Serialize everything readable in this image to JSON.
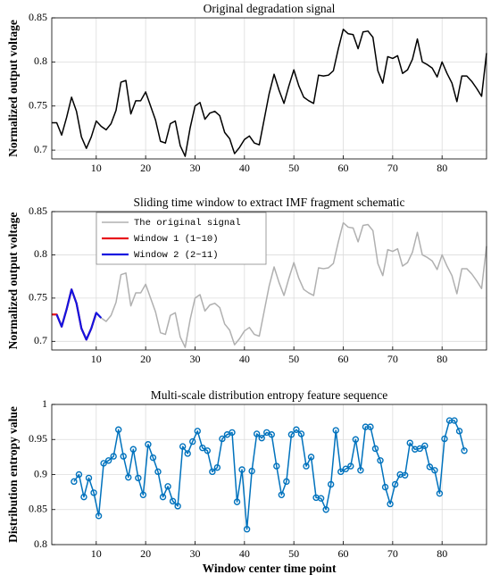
{
  "chart_data": [
    {
      "type": "line",
      "title": "Original degradation signal",
      "ylabel": "Normalized output voltage",
      "x": [
        1,
        2,
        3,
        4,
        5,
        6,
        7,
        8,
        9,
        10,
        11,
        12,
        13,
        14,
        15,
        16,
        17,
        18,
        19,
        20,
        21,
        22,
        23,
        24,
        25,
        26,
        27,
        28,
        29,
        30,
        31,
        32,
        33,
        34,
        35,
        36,
        37,
        38,
        39,
        40,
        41,
        42,
        43,
        44,
        45,
        46,
        47,
        48,
        49,
        50,
        51,
        52,
        53,
        54,
        55,
        56,
        57,
        58,
        59,
        60,
        61,
        62,
        63,
        64,
        65,
        66,
        67,
        68,
        69,
        70,
        71,
        72,
        73,
        74,
        75,
        76,
        77,
        78,
        79,
        80,
        81,
        82,
        83,
        84,
        85,
        86,
        87,
        88,
        89
      ],
      "series": [
        {
          "name": "Original degradation signal",
          "color": "#000000",
          "values": [
            0.731,
            0.731,
            0.717,
            0.737,
            0.76,
            0.744,
            0.715,
            0.702,
            0.715,
            0.733,
            0.727,
            0.723,
            0.73,
            0.745,
            0.777,
            0.779,
            0.741,
            0.756,
            0.756,
            0.766,
            0.75,
            0.734,
            0.71,
            0.708,
            0.73,
            0.733,
            0.705,
            0.693,
            0.725,
            0.75,
            0.754,
            0.735,
            0.742,
            0.744,
            0.739,
            0.72,
            0.713,
            0.696,
            0.703,
            0.712,
            0.716,
            0.708,
            0.706,
            0.735,
            0.764,
            0.786,
            0.768,
            0.753,
            0.773,
            0.791,
            0.773,
            0.76,
            0.756,
            0.753,
            0.785,
            0.784,
            0.785,
            0.79,
            0.815,
            0.837,
            0.832,
            0.831,
            0.815,
            0.834,
            0.835,
            0.828,
            0.79,
            0.776,
            0.806,
            0.804,
            0.807,
            0.787,
            0.791,
            0.803,
            0.826,
            0.8,
            0.797,
            0.793,
            0.783,
            0.8,
            0.787,
            0.776,
            0.755,
            0.784,
            0.784,
            0.778,
            0.77,
            0.761,
            0.81
          ]
        }
      ],
      "xlim": [
        1,
        89
      ],
      "ylim": [
        0.69,
        0.85
      ],
      "xticks": [
        10,
        20,
        30,
        40,
        50,
        60,
        70,
        80
      ],
      "yticks": [
        0.7,
        0.75,
        0.8,
        0.85
      ],
      "grid": true
    },
    {
      "type": "line",
      "title": "Sliding time window to extract IMF fragment schematic",
      "ylabel": "Normalized output voltage",
      "x": [
        1,
        2,
        3,
        4,
        5,
        6,
        7,
        8,
        9,
        10,
        11,
        12,
        13,
        14,
        15,
        16,
        17,
        18,
        19,
        20,
        21,
        22,
        23,
        24,
        25,
        26,
        27,
        28,
        29,
        30,
        31,
        32,
        33,
        34,
        35,
        36,
        37,
        38,
        39,
        40,
        41,
        42,
        43,
        44,
        45,
        46,
        47,
        48,
        49,
        50,
        51,
        52,
        53,
        54,
        55,
        56,
        57,
        58,
        59,
        60,
        61,
        62,
        63,
        64,
        65,
        66,
        67,
        68,
        69,
        70,
        71,
        72,
        73,
        74,
        75,
        76,
        77,
        78,
        79,
        80,
        81,
        82,
        83,
        84,
        85,
        86,
        87,
        88,
        89
      ],
      "series": [
        {
          "name": "The original signal",
          "color": "#b0b0b0",
          "values": [
            0.731,
            0.731,
            0.717,
            0.737,
            0.76,
            0.744,
            0.715,
            0.702,
            0.715,
            0.733,
            0.727,
            0.723,
            0.73,
            0.745,
            0.777,
            0.779,
            0.741,
            0.756,
            0.756,
            0.766,
            0.75,
            0.734,
            0.71,
            0.708,
            0.73,
            0.733,
            0.705,
            0.693,
            0.725,
            0.75,
            0.754,
            0.735,
            0.742,
            0.744,
            0.739,
            0.72,
            0.713,
            0.696,
            0.703,
            0.712,
            0.716,
            0.708,
            0.706,
            0.735,
            0.764,
            0.786,
            0.768,
            0.753,
            0.773,
            0.791,
            0.773,
            0.76,
            0.756,
            0.753,
            0.785,
            0.784,
            0.785,
            0.79,
            0.815,
            0.837,
            0.832,
            0.831,
            0.815,
            0.834,
            0.835,
            0.828,
            0.79,
            0.776,
            0.806,
            0.804,
            0.807,
            0.787,
            0.791,
            0.803,
            0.826,
            0.8,
            0.797,
            0.793,
            0.783,
            0.8,
            0.787,
            0.776,
            0.755,
            0.784,
            0.784,
            0.778,
            0.77,
            0.761,
            0.81
          ]
        },
        {
          "name": "Window 1 (1~10)",
          "color": "#e8141c",
          "values": [
            0.731,
            0.731,
            0.717,
            0.737,
            0.76,
            0.744,
            0.715,
            0.702,
            0.715,
            0.733,
            null,
            null,
            null,
            null,
            null,
            null,
            null,
            null,
            null,
            null,
            null,
            null,
            null,
            null,
            null,
            null,
            null,
            null,
            null,
            null,
            null,
            null,
            null,
            null,
            null,
            null,
            null,
            null,
            null,
            null,
            null,
            null,
            null,
            null,
            null,
            null,
            null,
            null,
            null,
            null,
            null,
            null,
            null,
            null,
            null,
            null,
            null,
            null,
            null,
            null,
            null,
            null,
            null,
            null,
            null,
            null,
            null,
            null,
            null,
            null,
            null,
            null,
            null,
            null,
            null,
            null,
            null,
            null,
            null,
            null,
            null,
            null,
            null,
            null,
            null,
            null,
            null,
            null,
            null
          ]
        },
        {
          "name": "Window 2 (2~11)",
          "color": "#1414e0",
          "values": [
            null,
            0.731,
            0.717,
            0.737,
            0.76,
            0.744,
            0.715,
            0.702,
            0.715,
            0.733,
            0.727,
            null,
            null,
            null,
            null,
            null,
            null,
            null,
            null,
            null,
            null,
            null,
            null,
            null,
            null,
            null,
            null,
            null,
            null,
            null,
            null,
            null,
            null,
            null,
            null,
            null,
            null,
            null,
            null,
            null,
            null,
            null,
            null,
            null,
            null,
            null,
            null,
            null,
            null,
            null,
            null,
            null,
            null,
            null,
            null,
            null,
            null,
            null,
            null,
            null,
            null,
            null,
            null,
            null,
            null,
            null,
            null,
            null,
            null,
            null,
            null,
            null,
            null,
            null,
            null,
            null,
            null,
            null,
            null,
            null,
            null,
            null,
            null,
            null,
            null,
            null,
            null,
            null,
            null
          ]
        }
      ],
      "xlim": [
        1,
        89
      ],
      "ylim": [
        0.69,
        0.85
      ],
      "xticks": [
        10,
        20,
        30,
        40,
        50,
        60,
        70,
        80
      ],
      "yticks": [
        0.7,
        0.75,
        0.8,
        0.85
      ],
      "grid": true,
      "legend": "upper left"
    },
    {
      "type": "line",
      "title": "Multi-scale distribution entropy feature sequence",
      "ylabel": "Distribution entropy value",
      "xlabel": "Window center time point",
      "x": [
        5.5,
        6.5,
        7.5,
        8.5,
        9.5,
        10.5,
        11.5,
        12.5,
        13.5,
        14.5,
        15.5,
        16.5,
        17.5,
        18.5,
        19.5,
        20.5,
        21.5,
        22.5,
        23.5,
        24.5,
        25.5,
        26.5,
        27.5,
        28.5,
        29.5,
        30.5,
        31.5,
        32.5,
        33.5,
        34.5,
        35.5,
        36.5,
        37.5,
        38.5,
        39.5,
        40.5,
        41.5,
        42.5,
        43.5,
        44.5,
        45.5,
        46.5,
        47.5,
        48.5,
        49.5,
        50.5,
        51.5,
        52.5,
        53.5,
        54.5,
        55.5,
        56.5,
        57.5,
        58.5,
        59.5,
        60.5,
        61.5,
        62.5,
        63.5,
        64.5,
        65.5,
        66.5,
        67.5,
        68.5,
        69.5,
        70.5,
        71.5,
        72.5,
        73.5,
        74.5,
        75.5,
        76.5,
        77.5,
        78.5,
        79.5,
        80.5,
        81.5,
        82.5,
        83.5,
        84.5
      ],
      "series": [
        {
          "name": "Multi-scale distribution entropy feature sequence",
          "color": "#0072bd",
          "marker": "circle",
          "values": [
            0.89,
            0.9,
            0.868,
            0.895,
            0.874,
            0.841,
            0.916,
            0.92,
            0.926,
            0.964,
            0.926,
            0.896,
            0.936,
            0.895,
            0.871,
            0.943,
            0.924,
            0.904,
            0.868,
            0.883,
            0.862,
            0.855,
            0.94,
            0.93,
            0.947,
            0.962,
            0.938,
            0.934,
            0.904,
            0.91,
            0.951,
            0.957,
            0.96,
            0.861,
            0.907,
            0.822,
            0.905,
            0.958,
            0.952,
            0.96,
            0.957,
            0.912,
            0.871,
            0.89,
            0.957,
            0.964,
            0.958,
            0.912,
            0.925,
            0.867,
            0.866,
            0.85,
            0.886,
            0.963,
            0.904,
            0.908,
            0.912,
            0.95,
            0.906,
            0.968,
            0.968,
            0.937,
            0.92,
            0.882,
            0.858,
            0.886,
            0.9,
            0.899,
            0.945,
            0.936,
            0.937,
            0.941,
            0.911,
            0.906,
            0.873,
            0.951,
            0.977,
            0.977,
            0.962,
            0.934
          ]
        }
      ],
      "xlim": [
        1,
        89
      ],
      "ylim": [
        0.8,
        1
      ],
      "xticks": [
        10,
        20,
        30,
        40,
        50,
        60,
        70,
        80
      ],
      "yticks": [
        0.8,
        0.85,
        0.9,
        0.95,
        1
      ],
      "grid": true
    }
  ]
}
